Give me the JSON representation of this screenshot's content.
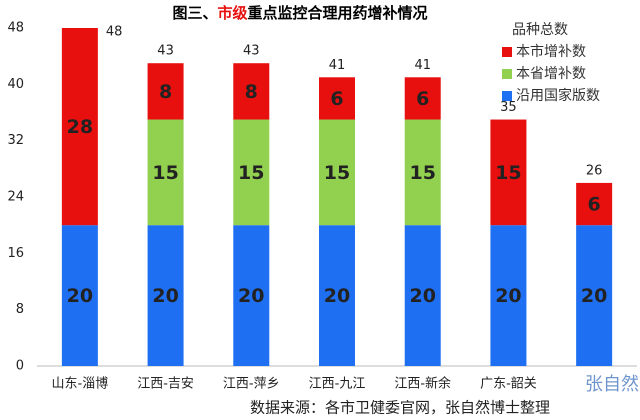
{
  "chart_data": {
    "type": "stacked_bar",
    "title": [
      "图三、",
      "市级",
      "重点监控合理用药增补情况"
    ],
    "title_colors": [
      "#000000",
      "#e8100f",
      "#000000"
    ],
    "categories": [
      "山东-淄博",
      "江西-吉安",
      "江西-萍乡",
      "江西-九江",
      "江西-新余",
      "广东-韶关",
      null
    ],
    "legend_title": "品种总数",
    "series": [
      {
        "name": "沿用国家版数",
        "color": "#1f6ff2",
        "values": [
          20,
          20,
          20,
          20,
          20,
          20,
          20
        ]
      },
      {
        "name": "本省增补数",
        "color": "#92d050",
        "values": [
          null,
          15,
          15,
          15,
          15,
          null,
          null
        ]
      },
      {
        "name": "本市增补数",
        "color": "#e8100f",
        "values": [
          28,
          8,
          8,
          6,
          6,
          15,
          6
        ]
      }
    ],
    "legend_order": [
      2,
      1,
      0
    ],
    "totals": [
      48,
      43,
      43,
      41,
      41,
      35,
      26
    ],
    "ylim": [
      0,
      48
    ],
    "yticks": [
      0,
      8,
      16,
      24,
      32,
      40,
      48
    ],
    "watermark": "张自然",
    "source": "数据来源：各市卫健委官网，张自然博士整理"
  }
}
